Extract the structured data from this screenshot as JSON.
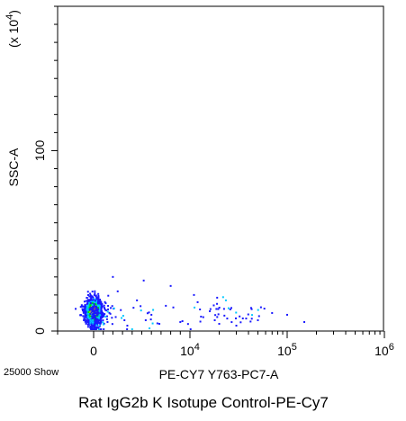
{
  "chart_data": {
    "type": "scatter",
    "title": "Rat IgG2b K Isotupe Control-PE-Cy7",
    "xlabel": "PE-CY7 Y763-PC7-A",
    "ylabel": "SSC-A",
    "y_multiplier": "(x 10^4)",
    "events_label": "25000 Show",
    "x_scale": "biexponential",
    "xlim": [
      -1000,
      1000000
    ],
    "ylim": [
      0,
      180
    ],
    "x_ticks": [
      {
        "label": "0",
        "value": 0
      },
      {
        "label": "10^4",
        "value": 10000
      },
      {
        "label": "10^5",
        "value": 100000
      },
      {
        "label": "10^6",
        "value": 1000000
      }
    ],
    "y_ticks": [
      {
        "label": "0",
        "value": 0
      },
      {
        "label": "100",
        "value": 100
      }
    ],
    "grid": false,
    "color_scale": [
      "#1a1aff",
      "#00c8ff",
      "#00e000",
      "#ffff00",
      "#ff2000"
    ],
    "population": {
      "core": {
        "x": 0,
        "y": 10
      },
      "sparse_points": [
        {
          "x": 1500,
          "y": 12
        },
        {
          "x": 2500,
          "y": 22
        },
        {
          "x": 3200,
          "y": 6
        },
        {
          "x": 4500,
          "y": 17
        },
        {
          "x": 5200,
          "y": 28
        },
        {
          "x": 6000,
          "y": 9
        },
        {
          "x": 7500,
          "y": 14
        },
        {
          "x": 9000,
          "y": 5
        },
        {
          "x": 11000,
          "y": 20
        },
        {
          "x": 13000,
          "y": 8
        },
        {
          "x": 16000,
          "y": 11
        },
        {
          "x": 20000,
          "y": 4
        },
        {
          "x": 26000,
          "y": 12
        },
        {
          "x": 35000,
          "y": 7
        },
        {
          "x": 50000,
          "y": 6
        },
        {
          "x": 70000,
          "y": 10
        },
        {
          "x": 100000,
          "y": 9
        },
        {
          "x": 150000,
          "y": 5
        },
        {
          "x": 2000,
          "y": 30
        },
        {
          "x": 3500,
          "y": 3
        },
        {
          "x": 8000,
          "y": 25
        },
        {
          "x": 12000,
          "y": 16
        },
        {
          "x": 18000,
          "y": 6
        },
        {
          "x": 30000,
          "y": 3
        }
      ]
    }
  }
}
